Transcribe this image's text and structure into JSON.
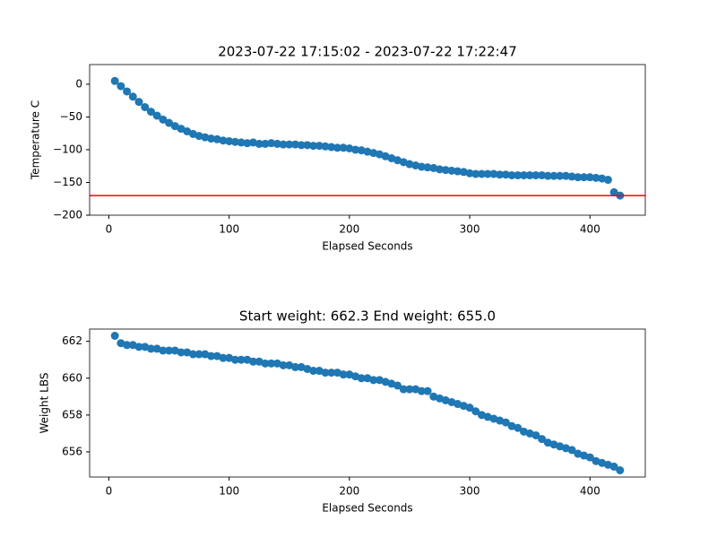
{
  "chart_data": [
    {
      "type": "scatter",
      "title": "2023-07-22 17:15:02 - 2023-07-22 17:22:47",
      "x_label": "Elapsed Seconds",
      "y_label": "Temperature C",
      "color": "#1f77b4",
      "x": [
        5,
        10,
        15,
        20,
        25,
        30,
        35,
        40,
        45,
        50,
        55,
        60,
        65,
        70,
        75,
        80,
        85,
        90,
        95,
        100,
        105,
        110,
        115,
        120,
        125,
        130,
        135,
        140,
        145,
        150,
        155,
        160,
        165,
        170,
        175,
        180,
        185,
        190,
        195,
        200,
        205,
        210,
        215,
        220,
        225,
        230,
        235,
        240,
        245,
        250,
        255,
        260,
        265,
        270,
        275,
        280,
        285,
        290,
        295,
        300,
        305,
        310,
        315,
        320,
        325,
        330,
        335,
        340,
        345,
        350,
        355,
        360,
        365,
        370,
        375,
        380,
        385,
        390,
        395,
        400,
        405,
        410,
        415,
        420,
        425
      ],
      "values": [
        5,
        -3,
        -11,
        -19,
        -27,
        -35,
        -42,
        -48,
        -54,
        -59,
        -64,
        -68,
        -72,
        -76,
        -79,
        -81,
        -83,
        -84,
        -86,
        -87,
        -88,
        -89,
        -90,
        -89,
        -91,
        -91,
        -90,
        -91,
        -92,
        -92,
        -92,
        -93,
        -93,
        -94,
        -94,
        -95,
        -96,
        -97,
        -97,
        -98,
        -100,
        -101,
        -103,
        -105,
        -107,
        -110,
        -113,
        -116,
        -119,
        -122,
        -124,
        -126,
        -127,
        -128,
        -130,
        -131,
        -132,
        -133,
        -134,
        -136,
        -137,
        -137,
        -137,
        -137,
        -138,
        -138,
        -139,
        -139,
        -139,
        -139,
        -139,
        -139,
        -140,
        -140,
        -140,
        -140,
        -141,
        -142,
        -142,
        -142,
        -143,
        -144,
        -146,
        -165,
        -170
      ],
      "xlim": [
        -16,
        446
      ],
      "xticks": [
        0,
        100,
        200,
        300,
        400
      ],
      "ylim": [
        -200,
        30
      ],
      "yticks": [
        0,
        {
          "value": -50,
          "label": "−50"
        },
        {
          "value": -100,
          "label": "−100"
        },
        {
          "value": -150,
          "label": "−150"
        },
        {
          "value": -200,
          "label": "−200"
        }
      ],
      "hline": {
        "y": -170,
        "color": "#ff0000"
      }
    },
    {
      "type": "scatter",
      "title": "Start weight: 662.3 End weight: 655.0",
      "x_label": "Elapsed Seconds",
      "y_label": "Weight LBS",
      "color": "#1f77b4",
      "x": [
        5,
        10,
        15,
        20,
        25,
        30,
        35,
        40,
        45,
        50,
        55,
        60,
        65,
        70,
        75,
        80,
        85,
        90,
        95,
        100,
        105,
        110,
        115,
        120,
        125,
        130,
        135,
        140,
        145,
        150,
        155,
        160,
        165,
        170,
        175,
        180,
        185,
        190,
        195,
        200,
        205,
        210,
        215,
        220,
        225,
        230,
        235,
        240,
        245,
        250,
        255,
        260,
        265,
        270,
        275,
        280,
        285,
        290,
        295,
        300,
        305,
        310,
        315,
        320,
        325,
        330,
        335,
        340,
        345,
        350,
        355,
        360,
        365,
        370,
        375,
        380,
        385,
        390,
        395,
        400,
        405,
        410,
        415,
        420,
        425
      ],
      "values": [
        662.3,
        661.9,
        661.8,
        661.8,
        661.7,
        661.7,
        661.6,
        661.6,
        661.5,
        661.5,
        661.5,
        661.4,
        661.4,
        661.3,
        661.3,
        661.3,
        661.2,
        661.2,
        661.1,
        661.1,
        661.0,
        661.0,
        661.0,
        660.9,
        660.9,
        660.8,
        660.8,
        660.8,
        660.7,
        660.7,
        660.6,
        660.6,
        660.5,
        660.4,
        660.4,
        660.3,
        660.3,
        660.3,
        660.2,
        660.2,
        660.1,
        660.0,
        660.0,
        659.9,
        659.9,
        659.8,
        659.7,
        659.6,
        659.4,
        659.4,
        659.4,
        659.3,
        659.3,
        659.0,
        658.9,
        658.8,
        658.7,
        658.6,
        658.5,
        658.4,
        658.2,
        658.0,
        657.9,
        657.8,
        657.7,
        657.6,
        657.4,
        657.3,
        657.1,
        657.0,
        656.9,
        656.7,
        656.5,
        656.4,
        656.3,
        656.2,
        656.1,
        655.9,
        655.8,
        655.7,
        655.5,
        655.4,
        655.3,
        655.2,
        655.0
      ],
      "xlim": [
        -16,
        446
      ],
      "xticks": [
        0,
        100,
        200,
        300,
        400
      ],
      "ylim": [
        654.635,
        662.665
      ],
      "yticks": [
        656,
        658,
        660,
        662
      ]
    }
  ]
}
